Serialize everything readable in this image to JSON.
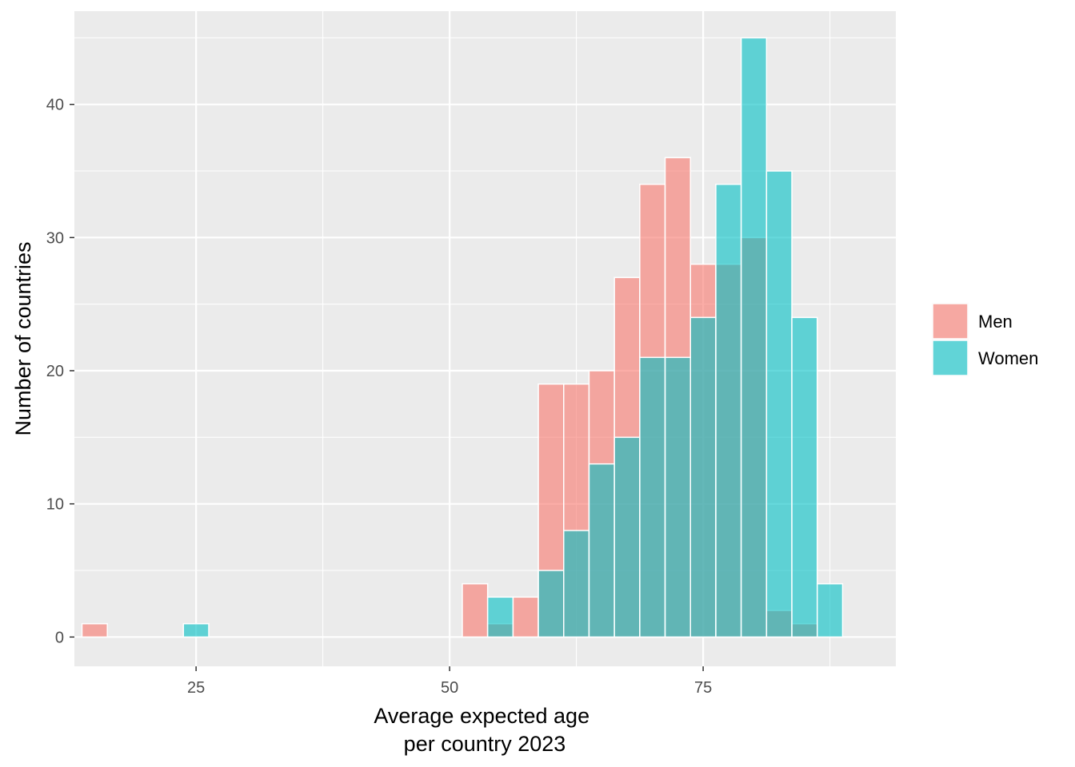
{
  "chart_data": {
    "type": "bar",
    "subtype": "overlapping-histogram",
    "title": "",
    "xlabel_lines": [
      "Average expected age",
      "per country 2023"
    ],
    "ylabel": "Number of countries",
    "xlim": [
      13.0,
      94.0
    ],
    "ylim": [
      -2.2,
      47.0
    ],
    "x_ticks": [
      25,
      50,
      75
    ],
    "y_ticks": [
      0,
      10,
      20,
      30,
      40
    ],
    "bin_width": 2.5,
    "grid": true,
    "legend_position": "right",
    "series": [
      {
        "name": "Men",
        "color": "#F8766D",
        "opacity": 0.6,
        "bins": [
          {
            "x": 15,
            "count": 1
          },
          {
            "x": 52.5,
            "count": 4
          },
          {
            "x": 55,
            "count": 1
          },
          {
            "x": 57.5,
            "count": 3
          },
          {
            "x": 60,
            "count": 19
          },
          {
            "x": 62.5,
            "count": 19
          },
          {
            "x": 65,
            "count": 20
          },
          {
            "x": 67.5,
            "count": 27
          },
          {
            "x": 70,
            "count": 34
          },
          {
            "x": 72.5,
            "count": 36
          },
          {
            "x": 75,
            "count": 28
          },
          {
            "x": 77.5,
            "count": 28
          },
          {
            "x": 80,
            "count": 30
          },
          {
            "x": 82.5,
            "count": 2
          },
          {
            "x": 85,
            "count": 1
          }
        ]
      },
      {
        "name": "Women",
        "color": "#00BFC4",
        "opacity": 0.6,
        "bins": [
          {
            "x": 25,
            "count": 1
          },
          {
            "x": 55,
            "count": 3
          },
          {
            "x": 60,
            "count": 5
          },
          {
            "x": 62.5,
            "count": 8
          },
          {
            "x": 65,
            "count": 13
          },
          {
            "x": 67.5,
            "count": 15
          },
          {
            "x": 70,
            "count": 21
          },
          {
            "x": 72.5,
            "count": 21
          },
          {
            "x": 75,
            "count": 24
          },
          {
            "x": 77.5,
            "count": 34
          },
          {
            "x": 80,
            "count": 45
          },
          {
            "x": 82.5,
            "count": 35
          },
          {
            "x": 85,
            "count": 24
          },
          {
            "x": 87.5,
            "count": 4
          }
        ]
      }
    ]
  }
}
